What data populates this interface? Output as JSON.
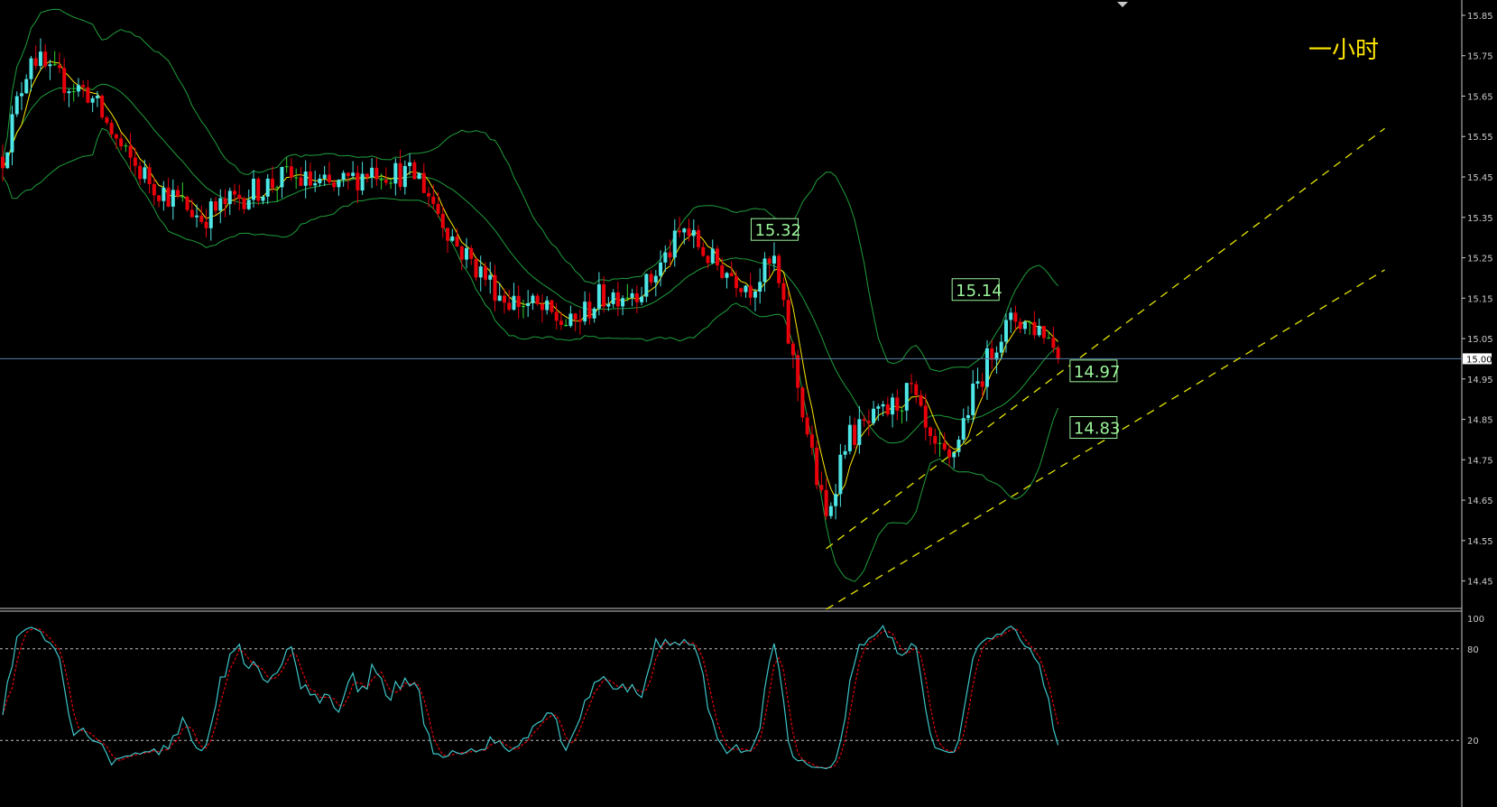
{
  "chart_title": "一小时",
  "colors": {
    "background": "#000000",
    "bull": "#4ee6e6",
    "bear": "#e8000b",
    "doji": "#2fd02f",
    "bollinger": "#1f9e3c",
    "ma": "#ffe600",
    "channel": "#e6e600",
    "hline": "#5a7fa8",
    "stoch_main": "#3ec5c8",
    "stoch_signal": "#e8000b",
    "label_text": "#9bf59b",
    "axis": "#c8c8c8"
  },
  "chart_data": [
    {
      "type": "candlestick",
      "timeframe": "一小时",
      "ylim": [
        14.4,
        15.87
      ],
      "y_ticks": [
        "15.85",
        "15.75",
        "15.65",
        "15.55",
        "15.45",
        "15.35",
        "15.25",
        "15.15",
        "15.05",
        "14.95",
        "14.85",
        "14.75",
        "14.65",
        "14.55",
        "14.45"
      ],
      "current_price_label": "15.00",
      "horizontal_line": 15.0,
      "price_labels": [
        {
          "text": "15.32",
          "value": 15.32,
          "bar": 157
        },
        {
          "text": "15.14",
          "value": 15.14,
          "bar": 213
        },
        {
          "text": "14.97",
          "value": 14.97,
          "bar": 224
        },
        {
          "text": "14.83",
          "value": 14.83,
          "bar": 224
        }
      ],
      "channel_lines": [
        {
          "from": [
            174,
            14.53
          ],
          "to": [
            292,
            15.57
          ]
        },
        {
          "from": [
            174,
            14.38
          ],
          "to": [
            292,
            15.22
          ]
        }
      ],
      "bars": 224,
      "start_close": 15.5,
      "trend_anchors": [
        [
          0,
          15.5
        ],
        [
          6,
          15.76
        ],
        [
          10,
          15.7
        ],
        [
          18,
          15.66
        ],
        [
          26,
          15.5
        ],
        [
          32,
          15.43
        ],
        [
          42,
          15.35
        ],
        [
          50,
          15.4
        ],
        [
          60,
          15.45
        ],
        [
          70,
          15.42
        ],
        [
          78,
          15.47
        ],
        [
          88,
          15.45
        ],
        [
          96,
          15.28
        ],
        [
          106,
          15.15
        ],
        [
          112,
          15.13
        ],
        [
          120,
          15.08
        ],
        [
          126,
          15.15
        ],
        [
          136,
          15.18
        ],
        [
          144,
          15.32
        ],
        [
          150,
          15.24
        ],
        [
          158,
          15.18
        ],
        [
          163,
          15.24
        ],
        [
          166,
          15.05
        ],
        [
          172,
          14.7
        ],
        [
          174,
          14.6
        ],
        [
          178,
          14.8
        ],
        [
          186,
          14.86
        ],
        [
          192,
          14.92
        ],
        [
          196,
          14.78
        ],
        [
          200,
          14.74
        ],
        [
          204,
          14.88
        ],
        [
          210,
          15.05
        ],
        [
          214,
          15.1
        ],
        [
          220,
          15.07
        ],
        [
          224,
          15.0
        ]
      ]
    },
    {
      "type": "line",
      "name": "stochastic",
      "ylim": [
        0,
        100
      ],
      "y_ticks": [
        "100",
        "80",
        "20"
      ],
      "levels": [
        80,
        20
      ],
      "series_count": 2
    }
  ]
}
